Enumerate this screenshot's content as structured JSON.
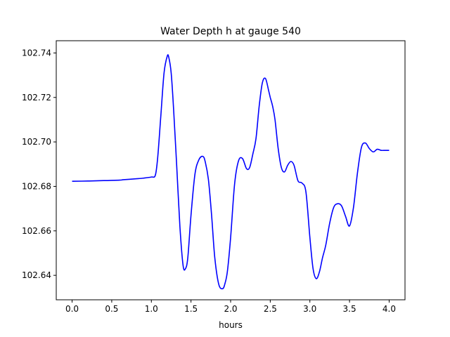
{
  "chart_data": {
    "type": "line",
    "title": "Water Depth h at gauge 540",
    "xlabel": "hours",
    "ylabel": "",
    "xlim": [
      -0.2,
      4.2
    ],
    "ylim": [
      102.629,
      102.7455
    ],
    "grid": false,
    "x_ticks": [
      0.0,
      0.5,
      1.0,
      1.5,
      2.0,
      2.5,
      3.0,
      3.5,
      4.0
    ],
    "x_tick_labels": [
      "0.0",
      "0.5",
      "1.0",
      "1.5",
      "2.0",
      "2.5",
      "3.0",
      "3.5",
      "4.0"
    ],
    "y_ticks": [
      102.64,
      102.66,
      102.68,
      102.7,
      102.72,
      102.74
    ],
    "y_tick_labels": [
      "102.64",
      "102.66",
      "102.68",
      "102.70",
      "102.72",
      "102.74"
    ],
    "series": [
      {
        "color": "#0000ff",
        "x": [
          0.0,
          0.2,
          0.4,
          0.6,
          0.65,
          0.8,
          0.9,
          1.0,
          1.05,
          1.08,
          1.12,
          1.16,
          1.2,
          1.22,
          1.25,
          1.28,
          1.32,
          1.36,
          1.4,
          1.43,
          1.46,
          1.5,
          1.55,
          1.6,
          1.65,
          1.68,
          1.72,
          1.76,
          1.8,
          1.85,
          1.9,
          1.93,
          1.96,
          2.0,
          2.05,
          2.1,
          2.15,
          2.2,
          2.24,
          2.28,
          2.32,
          2.36,
          2.4,
          2.44,
          2.48,
          2.5,
          2.53,
          2.56,
          2.6,
          2.64,
          2.68,
          2.72,
          2.76,
          2.8,
          2.85,
          2.9,
          2.95,
          3.0,
          3.04,
          3.08,
          3.12,
          3.16,
          3.2,
          3.25,
          3.3,
          3.35,
          3.4,
          3.45,
          3.5,
          3.55,
          3.6,
          3.65,
          3.7,
          3.75,
          3.8,
          3.85,
          3.9,
          3.95,
          4.0
        ],
        "values": [
          102.6823,
          102.6824,
          102.6826,
          102.6828,
          102.683,
          102.6834,
          102.6837,
          102.6842,
          102.685,
          102.693,
          102.712,
          102.731,
          102.7385,
          102.738,
          102.731,
          102.715,
          102.689,
          102.662,
          102.6445,
          102.643,
          102.648,
          102.667,
          102.6855,
          102.692,
          102.6935,
          102.691,
          102.683,
          102.667,
          102.648,
          102.636,
          102.634,
          102.6365,
          102.642,
          102.657,
          102.681,
          102.6915,
          102.6925,
          102.688,
          102.6885,
          102.6945,
          102.7015,
          102.716,
          102.7265,
          102.7285,
          102.723,
          102.72,
          102.716,
          102.71,
          102.697,
          102.6885,
          102.6865,
          102.6895,
          102.6912,
          102.6895,
          102.6825,
          102.6815,
          102.6775,
          102.657,
          102.643,
          102.6385,
          102.6415,
          102.648,
          102.6535,
          102.6635,
          102.6705,
          102.6722,
          102.6712,
          102.6665,
          102.6622,
          102.6705,
          102.686,
          102.6975,
          102.6995,
          102.697,
          102.6955,
          102.6967,
          102.6962,
          102.6962,
          102.6962
        ]
      }
    ]
  }
}
